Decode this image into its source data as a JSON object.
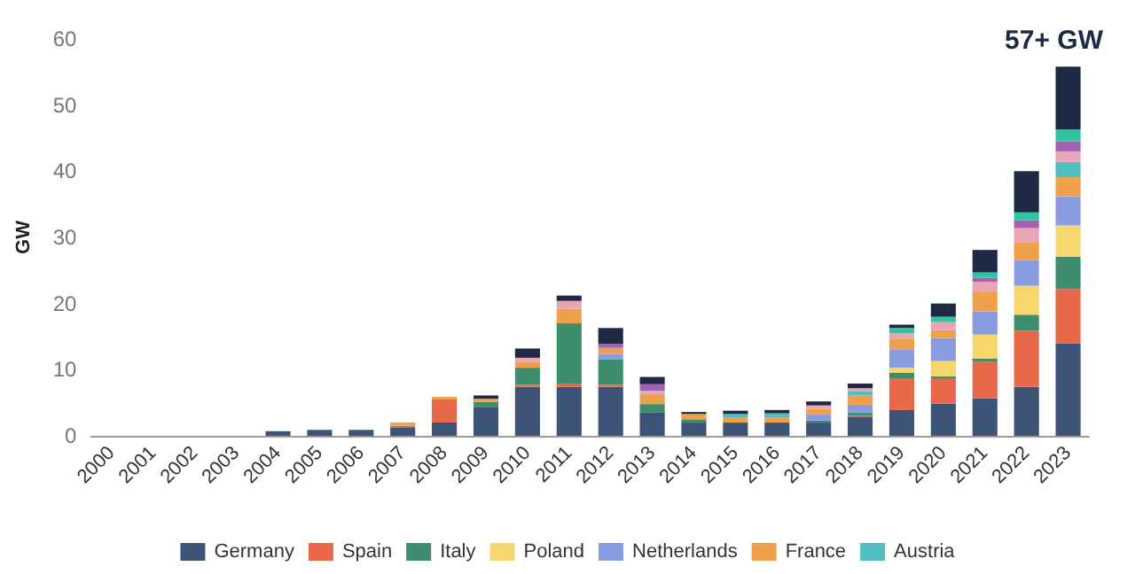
{
  "chart_data": {
    "type": "bar",
    "stacked": true,
    "ylabel": "GW",
    "categories": [
      "2000",
      "2001",
      "2002",
      "2003",
      "2004",
      "2005",
      "2006",
      "2007",
      "2008",
      "2009",
      "2010",
      "2011",
      "2012",
      "2013",
      "2014",
      "2015",
      "2016",
      "2017",
      "2018",
      "2019",
      "2020",
      "2021",
      "2022",
      "2023"
    ],
    "series": [
      {
        "name": "Germany",
        "color": "#3d5478",
        "values": [
          0,
          0,
          0,
          0,
          0.7,
          0.9,
          0.9,
          1.3,
          2.0,
          4.4,
          7.4,
          7.4,
          7.4,
          3.5,
          2.0,
          2.0,
          2.0,
          2.0,
          2.9,
          3.9,
          4.9,
          5.7,
          7.4,
          14.0
        ]
      },
      {
        "name": "Spain",
        "color": "#e8684a",
        "values": [
          0,
          0,
          0,
          0,
          0,
          0,
          0,
          0.2,
          3.5,
          0,
          0.3,
          0.4,
          0.3,
          0,
          0,
          0,
          0,
          0,
          0.2,
          4.8,
          3.7,
          5.5,
          8.5,
          8.2
        ]
      },
      {
        "name": "Italy",
        "color": "#3e8d6e",
        "values": [
          0,
          0,
          0,
          0,
          0,
          0,
          0,
          0,
          0,
          0.7,
          2.6,
          9.2,
          3.9,
          1.3,
          0.5,
          0,
          0,
          0.3,
          0.4,
          0.8,
          0.4,
          0.5,
          2.4,
          4.9
        ]
      },
      {
        "name": "Poland",
        "color": "#f5d76e",
        "values": [
          0,
          0,
          0,
          0,
          0,
          0,
          0,
          0,
          0,
          0,
          0,
          0,
          0,
          0,
          0,
          0,
          0,
          0,
          0,
          0.8,
          2.3,
          3.6,
          4.4,
          4.7
        ]
      },
      {
        "name": "Netherlands",
        "color": "#8a9ce0",
        "values": [
          0,
          0,
          0,
          0,
          0,
          0,
          0,
          0,
          0,
          0,
          0,
          0,
          0.8,
          0,
          0,
          0,
          0,
          0.9,
          1.2,
          2.8,
          3.5,
          3.5,
          3.9,
          4.4
        ]
      },
      {
        "name": "France",
        "color": "#f0a04b",
        "values": [
          0,
          0,
          0,
          0,
          0,
          0,
          0,
          0.5,
          0.4,
          0.5,
          0.9,
          2.2,
          0.9,
          1.5,
          0.8,
          0.8,
          0.8,
          0.9,
          1.4,
          1.6,
          1.2,
          2.9,
          2.7,
          2.9
        ]
      },
      {
        "name": "Austria",
        "color": "#4fbfbf",
        "values": [
          0,
          0,
          0,
          0,
          0,
          0,
          0,
          0,
          0,
          0,
          0,
          0,
          0,
          0,
          0,
          0.5,
          0.6,
          0,
          0.6,
          0,
          0,
          0,
          0,
          2.3
        ]
      },
      {
        "color": "#e8a5b5",
        "values": [
          0,
          0,
          0,
          0,
          0,
          0,
          0,
          0,
          0,
          null,
          0.6,
          1.2,
          0,
          0.5,
          null,
          null,
          null,
          0.5,
          0.5,
          0.8,
          1.2,
          1.6,
          2.1,
          1.6
        ]
      },
      {
        "color": "#a162b0",
        "values": [
          0,
          0,
          0,
          0,
          0,
          0,
          0,
          0,
          0,
          0,
          0,
          0,
          0.6,
          1.0,
          0,
          0,
          0,
          0,
          0,
          0,
          0,
          0.6,
          1.2,
          1.5
        ]
      },
      {
        "color": "#2ec4a0",
        "values": [
          0,
          0,
          0,
          0,
          0,
          0,
          0,
          0,
          0,
          0,
          0,
          0,
          0,
          0,
          0,
          0,
          0,
          0,
          0,
          0.8,
          0.8,
          0.8,
          1.2,
          1.8
        ]
      },
      {
        "color": "#1e2a44",
        "values": [
          0,
          0,
          0,
          0,
          0,
          0,
          0,
          0,
          0,
          0.5,
          1.4,
          0.8,
          2.4,
          1.1,
          0.3,
          0.5,
          0.5,
          0.6,
          0.7,
          0.5,
          2.0,
          3.4,
          6.2,
          9.5
        ]
      }
    ],
    "ylim": [
      0,
      60
    ],
    "yticks": [
      0,
      10,
      20,
      30,
      40,
      50,
      60
    ],
    "grid": false,
    "legend": "bottom",
    "annotations": [
      {
        "text": "57+ GW",
        "x": "2023",
        "y": 55.8
      }
    ]
  }
}
